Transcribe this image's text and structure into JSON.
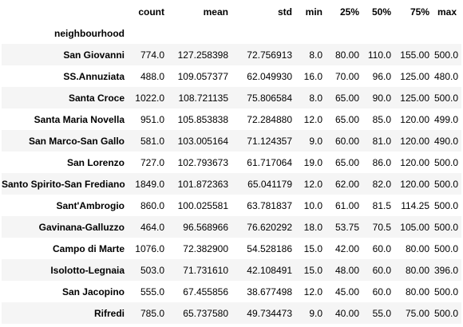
{
  "table": {
    "index_name": "neighbourhood",
    "columns": [
      "count",
      "mean",
      "std",
      "min",
      "25%",
      "50%",
      "75%",
      "max"
    ],
    "rows": [
      {
        "name": "San Giovanni",
        "values": [
          "774.0",
          "127.258398",
          "72.756913",
          "8.0",
          "80.00",
          "110.0",
          "155.00",
          "500.0"
        ]
      },
      {
        "name": "SS.Annuziata",
        "values": [
          "488.0",
          "109.057377",
          "62.049930",
          "16.0",
          "70.00",
          "96.0",
          "125.00",
          "480.0"
        ]
      },
      {
        "name": "Santa Croce",
        "values": [
          "1022.0",
          "108.721135",
          "75.806584",
          "8.0",
          "65.00",
          "90.0",
          "125.00",
          "500.0"
        ]
      },
      {
        "name": "Santa Maria Novella",
        "values": [
          "951.0",
          "105.853838",
          "72.284880",
          "12.0",
          "65.00",
          "85.0",
          "120.00",
          "499.0"
        ]
      },
      {
        "name": "San Marco-San Gallo",
        "values": [
          "581.0",
          "103.005164",
          "71.124357",
          "9.0",
          "60.00",
          "81.0",
          "120.00",
          "490.0"
        ]
      },
      {
        "name": "San Lorenzo",
        "values": [
          "727.0",
          "102.793673",
          "61.717064",
          "19.0",
          "65.00",
          "86.0",
          "120.00",
          "500.0"
        ]
      },
      {
        "name": "Santo Spirito-San Frediano",
        "values": [
          "1849.0",
          "101.872363",
          "65.041179",
          "12.0",
          "62.00",
          "82.0",
          "120.00",
          "500.0"
        ]
      },
      {
        "name": "Sant'Ambrogio",
        "values": [
          "860.0",
          "100.025581",
          "63.781837",
          "10.0",
          "61.00",
          "81.5",
          "114.25",
          "500.0"
        ]
      },
      {
        "name": "Gavinana-Galluzzo",
        "values": [
          "464.0",
          "96.568966",
          "76.620292",
          "18.0",
          "53.75",
          "70.5",
          "105.00",
          "500.0"
        ]
      },
      {
        "name": "Campo di Marte",
        "values": [
          "1076.0",
          "72.382900",
          "54.528186",
          "15.0",
          "42.00",
          "60.0",
          "80.00",
          "500.0"
        ]
      },
      {
        "name": "Isolotto-Legnaia",
        "values": [
          "503.0",
          "71.731610",
          "42.108491",
          "15.0",
          "48.00",
          "60.0",
          "80.00",
          "396.0"
        ]
      },
      {
        "name": "San Jacopino",
        "values": [
          "555.0",
          "67.455856",
          "38.677498",
          "12.0",
          "45.00",
          "60.0",
          "80.00",
          "500.0"
        ]
      },
      {
        "name": "Rifredi",
        "values": [
          "785.0",
          "65.737580",
          "49.734473",
          "9.0",
          "40.00",
          "55.0",
          "75.00",
          "500.0"
        ]
      }
    ]
  }
}
